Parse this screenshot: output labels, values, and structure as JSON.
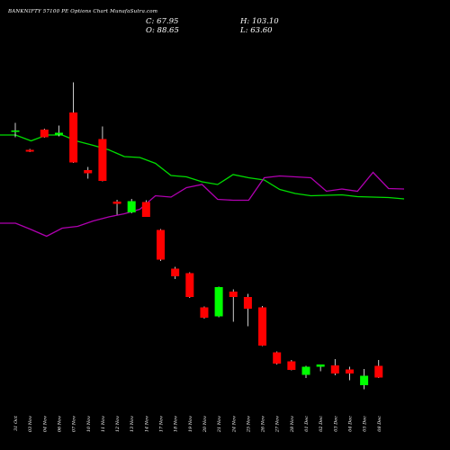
{
  "header": {
    "title": "BANKNIFTY 57100 PE Options Chart MunafaSutra.com",
    "close": "C: 67.95",
    "open": "O: 88.65",
    "high": "H: 103.10",
    "low": "L: 63.60"
  },
  "colors": {
    "background": "#000000",
    "up": "#00ff00",
    "down": "#ff0000",
    "line_green": "#00dd00",
    "line_magenta": "#b000b0",
    "text": "#ffffff"
  },
  "chart_data": {
    "type": "candlestick",
    "categories": [
      "31 Oct",
      "03 Nov",
      "04 Nov",
      "06 Nov",
      "07 Nov",
      "10 Nov",
      "11 Nov",
      "12 Nov",
      "13 Nov",
      "14 Nov",
      "17 Nov",
      "18 Nov",
      "19 Nov",
      "20 Nov",
      "21 Nov",
      "24 Nov",
      "25 Nov",
      "26 Nov",
      "27 Nov",
      "28 Nov",
      "01 Dec",
      "02 Dec",
      "03 Dec",
      "04 Dec",
      "05 Dec",
      "08 Dec"
    ],
    "candles": [
      {
        "o": 408,
        "h": 427,
        "l": 395,
        "c": 410
      },
      {
        "o": 367,
        "h": 369,
        "l": 362,
        "c": 363
      },
      {
        "o": 412,
        "h": 414,
        "l": 394,
        "c": 395
      },
      {
        "o": 401,
        "h": 421,
        "l": 397,
        "c": 405
      },
      {
        "o": 450,
        "h": 517,
        "l": 338,
        "c": 339
      },
      {
        "o": 322,
        "h": 329,
        "l": 303,
        "c": 315
      },
      {
        "o": 391,
        "h": 419,
        "l": 297,
        "c": 298
      },
      {
        "o": 252,
        "h": 256,
        "l": 223,
        "c": 247
      },
      {
        "o": 228,
        "h": 258,
        "l": 226,
        "c": 253
      },
      {
        "o": 251,
        "h": 255,
        "l": 221,
        "c": 218
      },
      {
        "o": 189,
        "h": 191,
        "l": 120,
        "c": 123
      },
      {
        "o": 103,
        "h": 107,
        "l": 80,
        "c": 86
      },
      {
        "o": 93,
        "h": 95,
        "l": 38,
        "c": 40
      },
      {
        "o": 17,
        "h": 19,
        "l": -8,
        "c": -6
      },
      {
        "o": -3,
        "h": 63,
        "l": -5,
        "c": 62
      },
      {
        "o": 52,
        "h": 57,
        "l": -15,
        "c": 40
      },
      {
        "o": 40,
        "h": 47,
        "l": -25,
        "c": 14
      },
      {
        "o": 17,
        "h": 20,
        "l": -69,
        "c": -68
      },
      {
        "o": -83,
        "h": -81,
        "l": -110,
        "c": -108
      },
      {
        "o": -103,
        "h": -100,
        "l": -123,
        "c": -122
      },
      {
        "o": -133,
        "h": -113,
        "l": -140,
        "c": -115
      },
      {
        "o": -115,
        "h": -110,
        "l": -125,
        "c": -110
      },
      {
        "o": -112,
        "h": -98,
        "l": -134,
        "c": -130
      },
      {
        "o": -121,
        "h": -115,
        "l": -145,
        "c": -130
      },
      {
        "o": -156,
        "h": -120,
        "l": -165,
        "c": -135
      },
      {
        "o": -113,
        "h": -100,
        "l": -140,
        "c": -139
      }
    ],
    "green_line": [
      400,
      400,
      387,
      400,
      400,
      386,
      377,
      367,
      352,
      350,
      337,
      310,
      307,
      296,
      290,
      312,
      305,
      300,
      279,
      270,
      265,
      266,
      267,
      263,
      262,
      261,
      258
    ],
    "magenta_line": [
      204,
      204,
      190,
      175,
      193,
      197,
      209,
      218,
      225,
      235,
      265,
      262,
      283,
      290,
      257,
      255,
      255,
      305,
      309,
      307,
      305,
      275,
      280,
      275,
      317,
      281,
      280
    ],
    "xlim": [
      0,
      26
    ],
    "ylim": [
      -200,
      600
    ],
    "grid": false,
    "legend": "none"
  }
}
